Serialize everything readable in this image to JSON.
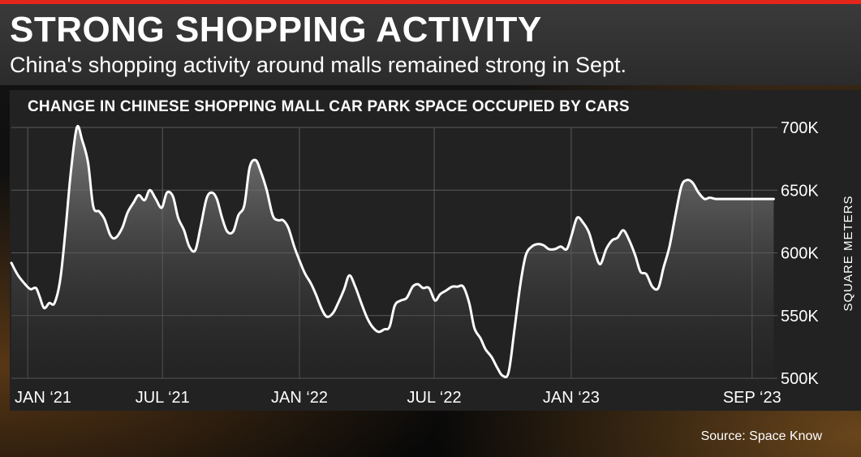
{
  "header": {
    "title": "STRONG SHOPPING ACTIVITY",
    "subtitle": "China's shopping activity around malls remained strong in Sept."
  },
  "footer": {
    "source": "Source: Space Know"
  },
  "colors": {
    "accent": "#e4251b",
    "line": "#ffffff",
    "panel": "#222222",
    "grid": "#5a5a5a"
  },
  "chart_data": {
    "type": "area",
    "title": "CHANGE IN CHINESE SHOPPING MALL CAR PARK SPACE OCCUPIED BY CARS",
    "xlabel": "",
    "ylabel": "SQUARE METERS",
    "ylim": [
      500000,
      700000
    ],
    "yticks": [
      500000,
      550000,
      600000,
      650000,
      700000
    ],
    "ytick_labels": [
      "500K",
      "550K",
      "600K",
      "650K",
      "700K"
    ],
    "xticks": [
      "2021-01-01",
      "2021-07-01",
      "2022-01-01",
      "2022-07-01",
      "2023-01-01",
      "2023-09-01"
    ],
    "xtick_labels": [
      "JAN ‘21",
      "JUL ‘21",
      "JAN ‘22",
      "JUL ‘22",
      "JAN ‘23",
      "SEP ‘23"
    ],
    "grid": true,
    "series": [
      {
        "name": "",
        "x": [
          "2020-12-10",
          "2020-12-19",
          "2020-12-30",
          "2021-01-05",
          "2021-01-12",
          "2021-01-17",
          "2021-01-23",
          "2021-01-30",
          "2021-02-06",
          "2021-02-14",
          "2021-02-21",
          "2021-02-28",
          "2021-03-08",
          "2021-03-15",
          "2021-03-23",
          "2021-03-30",
          "2021-04-07",
          "2021-04-14",
          "2021-04-22",
          "2021-04-29",
          "2021-05-08",
          "2021-05-15",
          "2021-05-23",
          "2021-05-30",
          "2021-06-07",
          "2021-06-14",
          "2021-06-22",
          "2021-06-30",
          "2021-07-07",
          "2021-07-15",
          "2021-07-22",
          "2021-07-30",
          "2021-08-06",
          "2021-08-14",
          "2021-08-21",
          "2021-08-29",
          "2021-09-05",
          "2021-09-12",
          "2021-09-19",
          "2021-09-26",
          "2021-10-04",
          "2021-10-11",
          "2021-10-19",
          "2021-10-26",
          "2021-11-03",
          "2021-11-10",
          "2021-11-18",
          "2021-11-26",
          "2021-12-03",
          "2021-12-10",
          "2021-12-17",
          "2021-12-25",
          "2022-01-01",
          "2022-01-08",
          "2022-01-16",
          "2022-01-23",
          "2022-01-31",
          "2022-02-07",
          "2022-02-15",
          "2022-02-22",
          "2022-03-02",
          "2022-03-09",
          "2022-03-17",
          "2022-03-25",
          "2022-04-02",
          "2022-04-09",
          "2022-04-17",
          "2022-04-25",
          "2022-05-02",
          "2022-05-09",
          "2022-05-17",
          "2022-05-25",
          "2022-06-02",
          "2022-06-09",
          "2022-06-16",
          "2022-06-24",
          "2022-07-02",
          "2022-07-09",
          "2022-07-17",
          "2022-07-25",
          "2022-08-01",
          "2022-08-09",
          "2022-08-17",
          "2022-08-24",
          "2022-09-01",
          "2022-09-08",
          "2022-09-16",
          "2022-09-24",
          "2022-10-01",
          "2022-10-09",
          "2022-10-17",
          "2022-10-25",
          "2022-11-01",
          "2022-11-09",
          "2022-11-17",
          "2022-11-25",
          "2022-12-02",
          "2022-12-10",
          "2022-12-18",
          "2022-12-26",
          "2023-01-02",
          "2023-01-09",
          "2023-01-17",
          "2023-01-25",
          "2023-02-02",
          "2023-02-09",
          "2023-02-17",
          "2023-02-25",
          "2023-03-04",
          "2023-03-12",
          "2023-03-20",
          "2023-03-28",
          "2023-04-04",
          "2023-04-12",
          "2023-04-20",
          "2023-04-28",
          "2023-05-05",
          "2023-05-13",
          "2023-05-21",
          "2023-05-29",
          "2023-06-05",
          "2023-06-13",
          "2023-06-21",
          "2023-06-29",
          "2023-07-06",
          "2023-07-14",
          "2023-07-22",
          "2023-07-30",
          "2023-08-06",
          "2023-08-14",
          "2023-08-22",
          "2023-08-30",
          "2023-09-06",
          "2023-09-14",
          "2023-09-22",
          "2023-09-30"
        ],
        "values": [
          592000,
          582000,
          574000,
          571000,
          572000,
          565000,
          556000,
          560000,
          560000,
          580000,
          620000,
          665000,
          700000,
          690000,
          672000,
          637000,
          633000,
          627000,
          614000,
          612000,
          620000,
          632000,
          640000,
          646000,
          642000,
          650000,
          643000,
          636000,
          648000,
          645000,
          628000,
          618000,
          605000,
          602000,
          620000,
          643000,
          648000,
          643000,
          628000,
          617000,
          617000,
          630000,
          638000,
          668000,
          674000,
          665000,
          650000,
          630000,
          626000,
          626000,
          620000,
          605000,
          594000,
          584000,
          576000,
          567000,
          555000,
          549000,
          552000,
          560000,
          571000,
          582000,
          573000,
          560000,
          548000,
          541000,
          537000,
          539000,
          541000,
          558000,
          562000,
          564000,
          573000,
          575000,
          572000,
          572000,
          562000,
          567000,
          570000,
          573000,
          573000,
          573000,
          560000,
          540000,
          532000,
          523000,
          517000,
          508000,
          502000,
          505000,
          540000,
          576000,
          598000,
          605000,
          607000,
          606000,
          603000,
          603000,
          605000,
          603000,
          615000,
          628000,
          624000,
          616000,
          600000,
          591000,
          603000,
          610000,
          612000,
          618000,
          610000,
          598000,
          585000,
          583000,
          573000,
          572000,
          588000,
          605000,
          630000,
          653000,
          658000,
          656000,
          648000,
          643000,
          644000,
          643000,
          643000,
          643000,
          643000,
          643000,
          643000,
          643000,
          643000,
          643000,
          643000,
          643000
        ]
      }
    ]
  }
}
